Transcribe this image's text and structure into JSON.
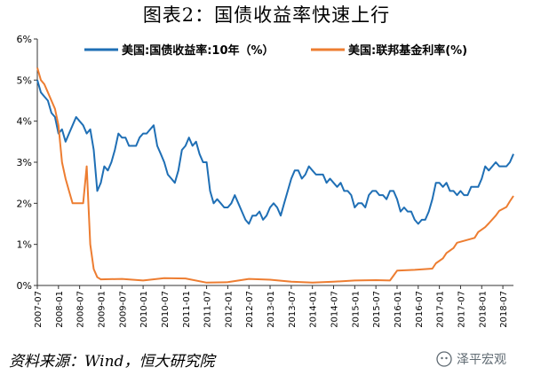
{
  "title": "图表2：国债收益率快速上行",
  "source_note": "资料来源：Wind，恒大研究院",
  "watermark": "泽平宏观",
  "chart_data": {
    "type": "line",
    "ylim": [
      0,
      6
    ],
    "yticks": [
      "0%",
      "1%",
      "2%",
      "3%",
      "4%",
      "5%",
      "6%"
    ],
    "xlim": [
      "2007-07",
      "2018-10"
    ],
    "xticks": [
      "2007-07",
      "2008-01",
      "2008-07",
      "2009-01",
      "2009-07",
      "2010-01",
      "2010-07",
      "2011-01",
      "2011-07",
      "2012-01",
      "2012-07",
      "2013-01",
      "2013-07",
      "2014-01",
      "2014-07",
      "2015-01",
      "2015-07",
      "2016-01",
      "2016-07",
      "2017-01",
      "2017-07",
      "2018-01",
      "2018-07"
    ],
    "legend_position": "top",
    "series": [
      {
        "name": "美国:国债收益率:10年（%）",
        "color": "#1f6fb5",
        "points": [
          [
            "2007-07",
            5.0
          ],
          [
            "2007-08",
            4.7
          ],
          [
            "2007-09",
            4.6
          ],
          [
            "2007-10",
            4.5
          ],
          [
            "2007-11",
            4.2
          ],
          [
            "2007-12",
            4.1
          ],
          [
            "2008-01",
            3.7
          ],
          [
            "2008-02",
            3.8
          ],
          [
            "2008-03",
            3.5
          ],
          [
            "2008-04",
            3.7
          ],
          [
            "2008-05",
            3.9
          ],
          [
            "2008-06",
            4.1
          ],
          [
            "2008-07",
            4.0
          ],
          [
            "2008-08",
            3.9
          ],
          [
            "2008-09",
            3.7
          ],
          [
            "2008-10",
            3.8
          ],
          [
            "2008-11",
            3.3
          ],
          [
            "2008-12",
            2.3
          ],
          [
            "2009-01",
            2.5
          ],
          [
            "2009-02",
            2.9
          ],
          [
            "2009-03",
            2.8
          ],
          [
            "2009-04",
            3.0
          ],
          [
            "2009-05",
            3.3
          ],
          [
            "2009-06",
            3.7
          ],
          [
            "2009-07",
            3.6
          ],
          [
            "2009-08",
            3.6
          ],
          [
            "2009-09",
            3.4
          ],
          [
            "2009-10",
            3.4
          ],
          [
            "2009-11",
            3.4
          ],
          [
            "2009-12",
            3.6
          ],
          [
            "2010-01",
            3.7
          ],
          [
            "2010-02",
            3.7
          ],
          [
            "2010-03",
            3.8
          ],
          [
            "2010-04",
            3.9
          ],
          [
            "2010-05",
            3.4
          ],
          [
            "2010-06",
            3.2
          ],
          [
            "2010-07",
            3.0
          ],
          [
            "2010-08",
            2.7
          ],
          [
            "2010-09",
            2.6
          ],
          [
            "2010-10",
            2.5
          ],
          [
            "2010-11",
            2.8
          ],
          [
            "2010-12",
            3.3
          ],
          [
            "2011-01",
            3.4
          ],
          [
            "2011-02",
            3.6
          ],
          [
            "2011-03",
            3.4
          ],
          [
            "2011-04",
            3.5
          ],
          [
            "2011-05",
            3.2
          ],
          [
            "2011-06",
            3.0
          ],
          [
            "2011-07",
            3.0
          ],
          [
            "2011-08",
            2.3
          ],
          [
            "2011-09",
            2.0
          ],
          [
            "2011-10",
            2.1
          ],
          [
            "2011-11",
            2.0
          ],
          [
            "2011-12",
            1.9
          ],
          [
            "2012-01",
            1.9
          ],
          [
            "2012-02",
            2.0
          ],
          [
            "2012-03",
            2.2
          ],
          [
            "2012-04",
            2.0
          ],
          [
            "2012-05",
            1.8
          ],
          [
            "2012-06",
            1.6
          ],
          [
            "2012-07",
            1.5
          ],
          [
            "2012-08",
            1.7
          ],
          [
            "2012-09",
            1.7
          ],
          [
            "2012-10",
            1.8
          ],
          [
            "2012-11",
            1.6
          ],
          [
            "2012-12",
            1.7
          ],
          [
            "2013-01",
            1.9
          ],
          [
            "2013-02",
            2.0
          ],
          [
            "2013-03",
            1.9
          ],
          [
            "2013-04",
            1.7
          ],
          [
            "2013-05",
            2.0
          ],
          [
            "2013-06",
            2.3
          ],
          [
            "2013-07",
            2.6
          ],
          [
            "2013-08",
            2.8
          ],
          [
            "2013-09",
            2.8
          ],
          [
            "2013-10",
            2.6
          ],
          [
            "2013-11",
            2.7
          ],
          [
            "2013-12",
            2.9
          ],
          [
            "2014-01",
            2.8
          ],
          [
            "2014-02",
            2.7
          ],
          [
            "2014-03",
            2.7
          ],
          [
            "2014-04",
            2.7
          ],
          [
            "2014-05",
            2.5
          ],
          [
            "2014-06",
            2.6
          ],
          [
            "2014-07",
            2.5
          ],
          [
            "2014-08",
            2.4
          ],
          [
            "2014-09",
            2.5
          ],
          [
            "2014-10",
            2.3
          ],
          [
            "2014-11",
            2.3
          ],
          [
            "2014-12",
            2.2
          ],
          [
            "2015-01",
            1.9
          ],
          [
            "2015-02",
            2.0
          ],
          [
            "2015-03",
            2.0
          ],
          [
            "2015-04",
            1.9
          ],
          [
            "2015-05",
            2.2
          ],
          [
            "2015-06",
            2.3
          ],
          [
            "2015-07",
            2.3
          ],
          [
            "2015-08",
            2.2
          ],
          [
            "2015-09",
            2.2
          ],
          [
            "2015-10",
            2.1
          ],
          [
            "2015-11",
            2.3
          ],
          [
            "2015-12",
            2.3
          ],
          [
            "2016-01",
            2.1
          ],
          [
            "2016-02",
            1.8
          ],
          [
            "2016-03",
            1.9
          ],
          [
            "2016-04",
            1.8
          ],
          [
            "2016-05",
            1.8
          ],
          [
            "2016-06",
            1.6
          ],
          [
            "2016-07",
            1.5
          ],
          [
            "2016-08",
            1.6
          ],
          [
            "2016-09",
            1.6
          ],
          [
            "2016-10",
            1.8
          ],
          [
            "2016-11",
            2.1
          ],
          [
            "2016-12",
            2.5
          ],
          [
            "2017-01",
            2.5
          ],
          [
            "2017-02",
            2.4
          ],
          [
            "2017-03",
            2.5
          ],
          [
            "2017-04",
            2.3
          ],
          [
            "2017-05",
            2.3
          ],
          [
            "2017-06",
            2.2
          ],
          [
            "2017-07",
            2.3
          ],
          [
            "2017-08",
            2.2
          ],
          [
            "2017-09",
            2.2
          ],
          [
            "2017-10",
            2.4
          ],
          [
            "2017-11",
            2.4
          ],
          [
            "2017-12",
            2.4
          ],
          [
            "2018-01",
            2.6
          ],
          [
            "2018-02",
            2.9
          ],
          [
            "2018-03",
            2.8
          ],
          [
            "2018-04",
            2.9
          ],
          [
            "2018-05",
            3.0
          ],
          [
            "2018-06",
            2.9
          ],
          [
            "2018-07",
            2.9
          ],
          [
            "2018-08",
            2.9
          ],
          [
            "2018-09",
            3.0
          ],
          [
            "2018-10",
            3.2
          ]
        ]
      },
      {
        "name": "美国:联邦基金利率(%)",
        "color": "#ed7d31",
        "points": [
          [
            "2007-07",
            5.3
          ],
          [
            "2007-08",
            5.0
          ],
          [
            "2007-09",
            4.9
          ],
          [
            "2007-10",
            4.7
          ],
          [
            "2007-11",
            4.5
          ],
          [
            "2007-12",
            4.3
          ],
          [
            "2008-01",
            3.9
          ],
          [
            "2008-02",
            3.0
          ],
          [
            "2008-03",
            2.6
          ],
          [
            "2008-04",
            2.3
          ],
          [
            "2008-05",
            2.0
          ],
          [
            "2008-06",
            2.0
          ],
          [
            "2008-07",
            2.0
          ],
          [
            "2008-08",
            2.0
          ],
          [
            "2008-09",
            2.9
          ],
          [
            "2008-10",
            1.0
          ],
          [
            "2008-11",
            0.4
          ],
          [
            "2008-12",
            0.2
          ],
          [
            "2009-01",
            0.15
          ],
          [
            "2009-07",
            0.16
          ],
          [
            "2010-01",
            0.12
          ],
          [
            "2010-07",
            0.18
          ],
          [
            "2011-01",
            0.17
          ],
          [
            "2011-07",
            0.07
          ],
          [
            "2012-01",
            0.08
          ],
          [
            "2012-07",
            0.16
          ],
          [
            "2013-01",
            0.14
          ],
          [
            "2013-07",
            0.09
          ],
          [
            "2014-01",
            0.07
          ],
          [
            "2014-07",
            0.09
          ],
          [
            "2015-01",
            0.12
          ],
          [
            "2015-07",
            0.13
          ],
          [
            "2015-11",
            0.12
          ],
          [
            "2015-12",
            0.24
          ],
          [
            "2016-01",
            0.36
          ],
          [
            "2016-06",
            0.38
          ],
          [
            "2016-11",
            0.41
          ],
          [
            "2016-12",
            0.54
          ],
          [
            "2017-02",
            0.66
          ],
          [
            "2017-03",
            0.79
          ],
          [
            "2017-05",
            0.91
          ],
          [
            "2017-06",
            1.04
          ],
          [
            "2017-11",
            1.16
          ],
          [
            "2017-12",
            1.3
          ],
          [
            "2018-02",
            1.42
          ],
          [
            "2018-03",
            1.51
          ],
          [
            "2018-05",
            1.7
          ],
          [
            "2018-06",
            1.82
          ],
          [
            "2018-08",
            1.91
          ],
          [
            "2018-09",
            2.05
          ],
          [
            "2018-10",
            2.18
          ]
        ]
      }
    ]
  }
}
